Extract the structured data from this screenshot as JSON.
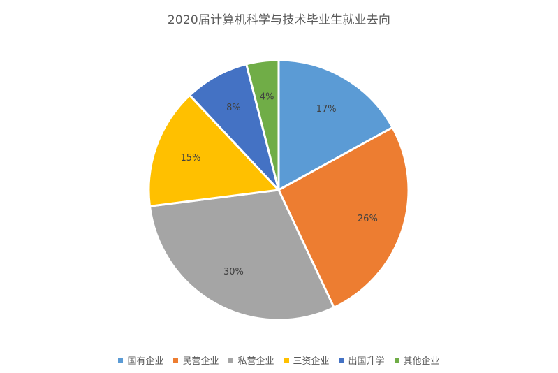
{
  "chart_data": {
    "type": "pie",
    "title": "2020届计算机科学与技术毕业生就业去向",
    "categories": [
      "国有企业",
      "民营企业",
      "私营企业",
      "三资企业",
      "出国升学",
      "其他企业"
    ],
    "values": [
      17,
      26,
      30,
      15,
      8,
      4
    ],
    "labels": [
      "17%",
      "26%",
      "30%",
      "15%",
      "8%",
      "4%"
    ],
    "colors": [
      "#5B9BD5",
      "#ED7D31",
      "#A5A5A5",
      "#FFC000",
      "#4472C4",
      "#70AD47"
    ],
    "legend_position": "bottom",
    "start_angle": "12 o'clock",
    "direction": "clockwise"
  }
}
